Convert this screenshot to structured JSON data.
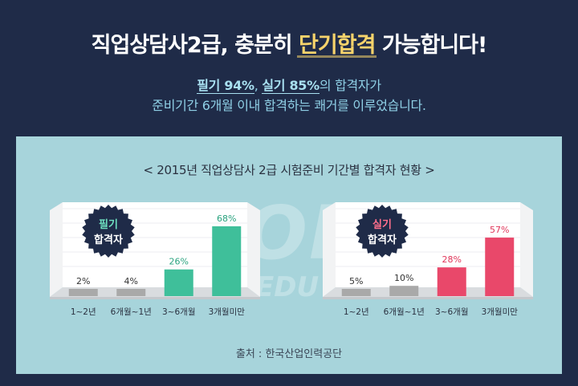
{
  "headline": {
    "before": "직업상담사2급, 충분히 ",
    "highlight": "단기합격",
    "after": " 가능합니다!"
  },
  "subtitle": {
    "line1_b1": "필기 94%",
    "line1_sep": ", ",
    "line1_b2": "실기 85%",
    "line1_rest": "의 합격자가",
    "line2": "준비기간 6개월 이내 합격하는 쾌거를 이루었습니다."
  },
  "panel_title": "< 2015년 직업상담사 2급 시험준비 기간별 합격자 현황 >",
  "watermark": {
    "main": "TOP",
    "sub": "EDU"
  },
  "source": "출처 : 한국산업인력공단",
  "colors": {
    "background": "#1f2b48",
    "highlight": "#f6d36b",
    "panel": "#a7d4db",
    "gray_bar": "#a9a9a9",
    "written_bar": "#3fbf9a",
    "practical_bar": "#e9486a"
  },
  "chart_data": [
    {
      "type": "bar",
      "badge": [
        "필기",
        "합격자"
      ],
      "badge_color": "#6ee0c0",
      "categories": [
        "1~2년",
        "6개월~1년",
        "3~6개월",
        "3개월미만"
      ],
      "values": [
        2,
        4,
        26,
        68
      ],
      "value_labels": [
        "2%",
        "4%",
        "26%",
        "68%"
      ],
      "highlight_from": 2,
      "highlight_color": "#3fbf9a",
      "label_color": "#2aa37f",
      "ylim": [
        0,
        70
      ]
    },
    {
      "type": "bar",
      "badge": [
        "실기",
        "합격자"
      ],
      "badge_color": "#ff6f8c",
      "categories": [
        "1~2년",
        "6개월~1년",
        "3~6개월",
        "3개월미만"
      ],
      "values": [
        5,
        10,
        28,
        57
      ],
      "value_labels": [
        "5%",
        "10%",
        "28%",
        "57%"
      ],
      "highlight_from": 2,
      "highlight_color": "#e9486a",
      "label_color": "#e0365a",
      "ylim": [
        0,
        70
      ]
    }
  ]
}
